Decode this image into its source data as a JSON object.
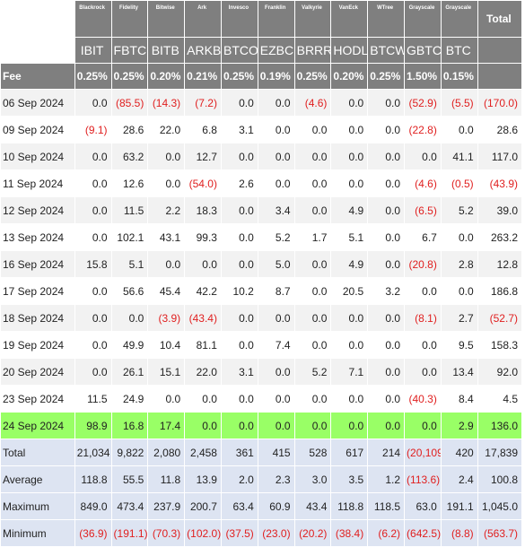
{
  "issuers": [
    "Blackrock",
    "Fidelity",
    "Bitwise",
    "Ark",
    "Invesco",
    "Franklin",
    "Valkyrie",
    "VanEck",
    "WTree",
    "Grayscale",
    "Grayscale"
  ],
  "total_label": "Total",
  "tickers": [
    "IBIT",
    "FBTC",
    "BITB",
    "ARKB",
    "BTCO",
    "EZBC",
    "BRRR",
    "HODL",
    "BTCW",
    "GBTC",
    "BTC"
  ],
  "fee_label": "Fee",
  "fees": [
    "0.25%",
    "0.25%",
    "0.20%",
    "0.21%",
    "0.25%",
    "0.19%",
    "0.25%",
    "0.20%",
    "0.25%",
    "1.50%",
    "0.15%"
  ],
  "rows": [
    {
      "date": "06 Sep 2024",
      "values": [
        "0.0",
        "(85.5)",
        "(14.3)",
        "(7.2)",
        "0.0",
        "0.0",
        "(4.6)",
        "0.0",
        "0.0",
        "(52.9)",
        "(5.5)",
        "(170.0)"
      ]
    },
    {
      "date": "09 Sep 2024",
      "values": [
        "(9.1)",
        "28.6",
        "22.0",
        "6.8",
        "3.1",
        "0.0",
        "0.0",
        "0.0",
        "0.0",
        "(22.8)",
        "0.0",
        "28.6"
      ]
    },
    {
      "date": "10 Sep 2024",
      "values": [
        "0.0",
        "63.2",
        "0.0",
        "12.7",
        "0.0",
        "0.0",
        "0.0",
        "0.0",
        "0.0",
        "0.0",
        "41.1",
        "117.0"
      ]
    },
    {
      "date": "11 Sep 2024",
      "values": [
        "0.0",
        "12.6",
        "0.0",
        "(54.0)",
        "2.6",
        "0.0",
        "0.0",
        "0.0",
        "0.0",
        "(4.6)",
        "(0.5)",
        "(43.9)"
      ]
    },
    {
      "date": "12 Sep 2024",
      "values": [
        "0.0",
        "11.5",
        "2.2",
        "18.3",
        "0.0",
        "3.4",
        "0.0",
        "4.9",
        "0.0",
        "(6.5)",
        "5.2",
        "39.0"
      ]
    },
    {
      "date": "13 Sep 2024",
      "values": [
        "0.0",
        "102.1",
        "43.1",
        "99.3",
        "0.0",
        "5.2",
        "1.7",
        "5.1",
        "0.0",
        "6.7",
        "0.0",
        "263.2"
      ]
    },
    {
      "date": "16 Sep 2024",
      "values": [
        "15.8",
        "5.1",
        "0.0",
        "0.0",
        "0.0",
        "5.0",
        "0.0",
        "4.9",
        "0.0",
        "(20.8)",
        "2.8",
        "12.8"
      ]
    },
    {
      "date": "17 Sep 2024",
      "values": [
        "0.0",
        "56.6",
        "45.4",
        "42.2",
        "10.2",
        "8.7",
        "0.0",
        "20.5",
        "3.2",
        "0.0",
        "0.0",
        "186.8"
      ]
    },
    {
      "date": "18 Sep 2024",
      "values": [
        "0.0",
        "0.0",
        "(3.9)",
        "(43.4)",
        "0.0",
        "0.0",
        "0.0",
        "0.0",
        "0.0",
        "(8.1)",
        "2.7",
        "(52.7)"
      ]
    },
    {
      "date": "19 Sep 2024",
      "values": [
        "0.0",
        "49.9",
        "10.4",
        "81.1",
        "0.0",
        "7.4",
        "0.0",
        "0.0",
        "0.0",
        "0.0",
        "9.5",
        "158.3"
      ]
    },
    {
      "date": "20 Sep 2024",
      "values": [
        "0.0",
        "26.1",
        "15.1",
        "22.0",
        "3.1",
        "0.0",
        "5.2",
        "7.1",
        "0.0",
        "0.0",
        "13.4",
        "92.0"
      ]
    },
    {
      "date": "23 Sep 2024",
      "values": [
        "11.5",
        "24.9",
        "0.0",
        "0.0",
        "0.0",
        "0.0",
        "0.0",
        "0.0",
        "0.0",
        "(40.3)",
        "8.4",
        "4.5"
      ]
    },
    {
      "date": "24 Sep 2024",
      "values": [
        "98.9",
        "16.8",
        "17.4",
        "0.0",
        "0.0",
        "0.0",
        "0.0",
        "0.0",
        "0.0",
        "0.0",
        "2.9",
        "136.0"
      ]
    }
  ],
  "highlight_date": "24 Sep 2024",
  "highlight_color": "#99ff66",
  "negative_color": "#e02020",
  "summary": [
    {
      "label": "Total",
      "values": [
        "21,034",
        "9,822",
        "2,080",
        "2,458",
        "361",
        "415",
        "528",
        "617",
        "214",
        "(20,109)",
        "420",
        "17,839"
      ]
    },
    {
      "label": "Average",
      "values": [
        "118.8",
        "55.5",
        "11.8",
        "13.9",
        "2.0",
        "2.3",
        "3.0",
        "3.5",
        "1.2",
        "(113.6)",
        "2.4",
        "100.8"
      ]
    },
    {
      "label": "Maximum",
      "values": [
        "849.0",
        "473.4",
        "237.9",
        "200.7",
        "63.4",
        "60.9",
        "43.4",
        "118.8",
        "118.5",
        "63.0",
        "191.1",
        "1,045.0"
      ]
    },
    {
      "label": "Minimum",
      "values": [
        "(36.9)",
        "(191.1)",
        "(70.3)",
        "(102.0)",
        "(37.5)",
        "(23.0)",
        "(20.2)",
        "(38.4)",
        "(6.2)",
        "(642.5)",
        "(8.8)",
        "(563.7)"
      ]
    }
  ]
}
